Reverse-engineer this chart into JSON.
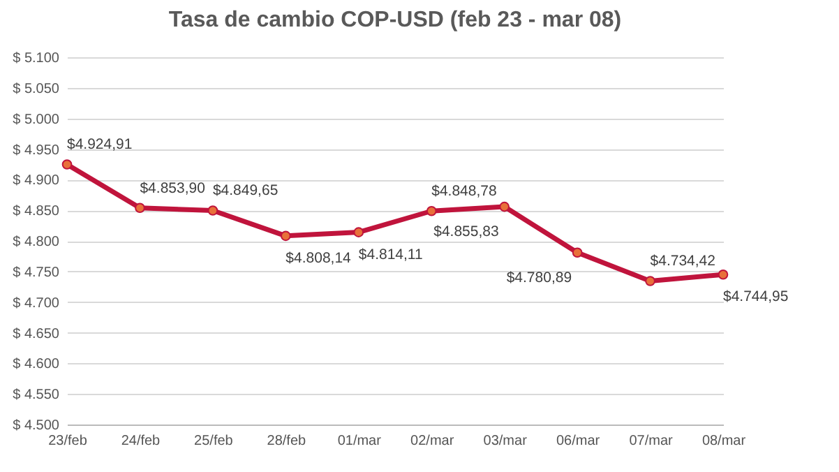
{
  "chart_data": {
    "type": "line",
    "title": "Tasa de cambio COP-USD (feb 23 - mar 08)",
    "categories": [
      "23/feb",
      "24/feb",
      "25/feb",
      "28/feb",
      "01/mar",
      "02/mar",
      "03/mar",
      "06/mar",
      "07/mar",
      "08/mar"
    ],
    "series": [
      {
        "color": "#c0143c",
        "values": [
          4924.91,
          4853.9,
          4849.65,
          4808.14,
          4814.11,
          4848.78,
          4855.83,
          4780.89,
          4734.42,
          4744.95
        ],
        "value_labels": [
          "$4.924,91",
          "$4.853,90",
          "$4.849,65",
          "$4.808,14",
          "$4.814,11",
          "$4.848,78",
          "$4.855,83",
          "$4.780,89",
          "$4.734,42",
          "$4.744,95"
        ]
      }
    ],
    "ylim": [
      4500,
      5100
    ],
    "yticks": [
      {
        "value": 4500,
        "label": "$ 4.500"
      },
      {
        "value": 4550,
        "label": "$ 4.550"
      },
      {
        "value": 4600,
        "label": "$ 4.600"
      },
      {
        "value": 4650,
        "label": "$ 4.650"
      },
      {
        "value": 4700,
        "label": "$ 4.700"
      },
      {
        "value": 4750,
        "label": "$ 4.750"
      },
      {
        "value": 4800,
        "label": "$ 4.800"
      },
      {
        "value": 4850,
        "label": "$ 4.850"
      },
      {
        "value": 4900,
        "label": "$ 4.900"
      },
      {
        "value": 4950,
        "label": "$ 4.950"
      },
      {
        "value": 5000,
        "label": "$ 5.000"
      },
      {
        "value": 5050,
        "label": "$ 5.050"
      },
      {
        "value": 5100,
        "label": "$ 5.100"
      }
    ],
    "grid": "y",
    "marker": "circle"
  }
}
